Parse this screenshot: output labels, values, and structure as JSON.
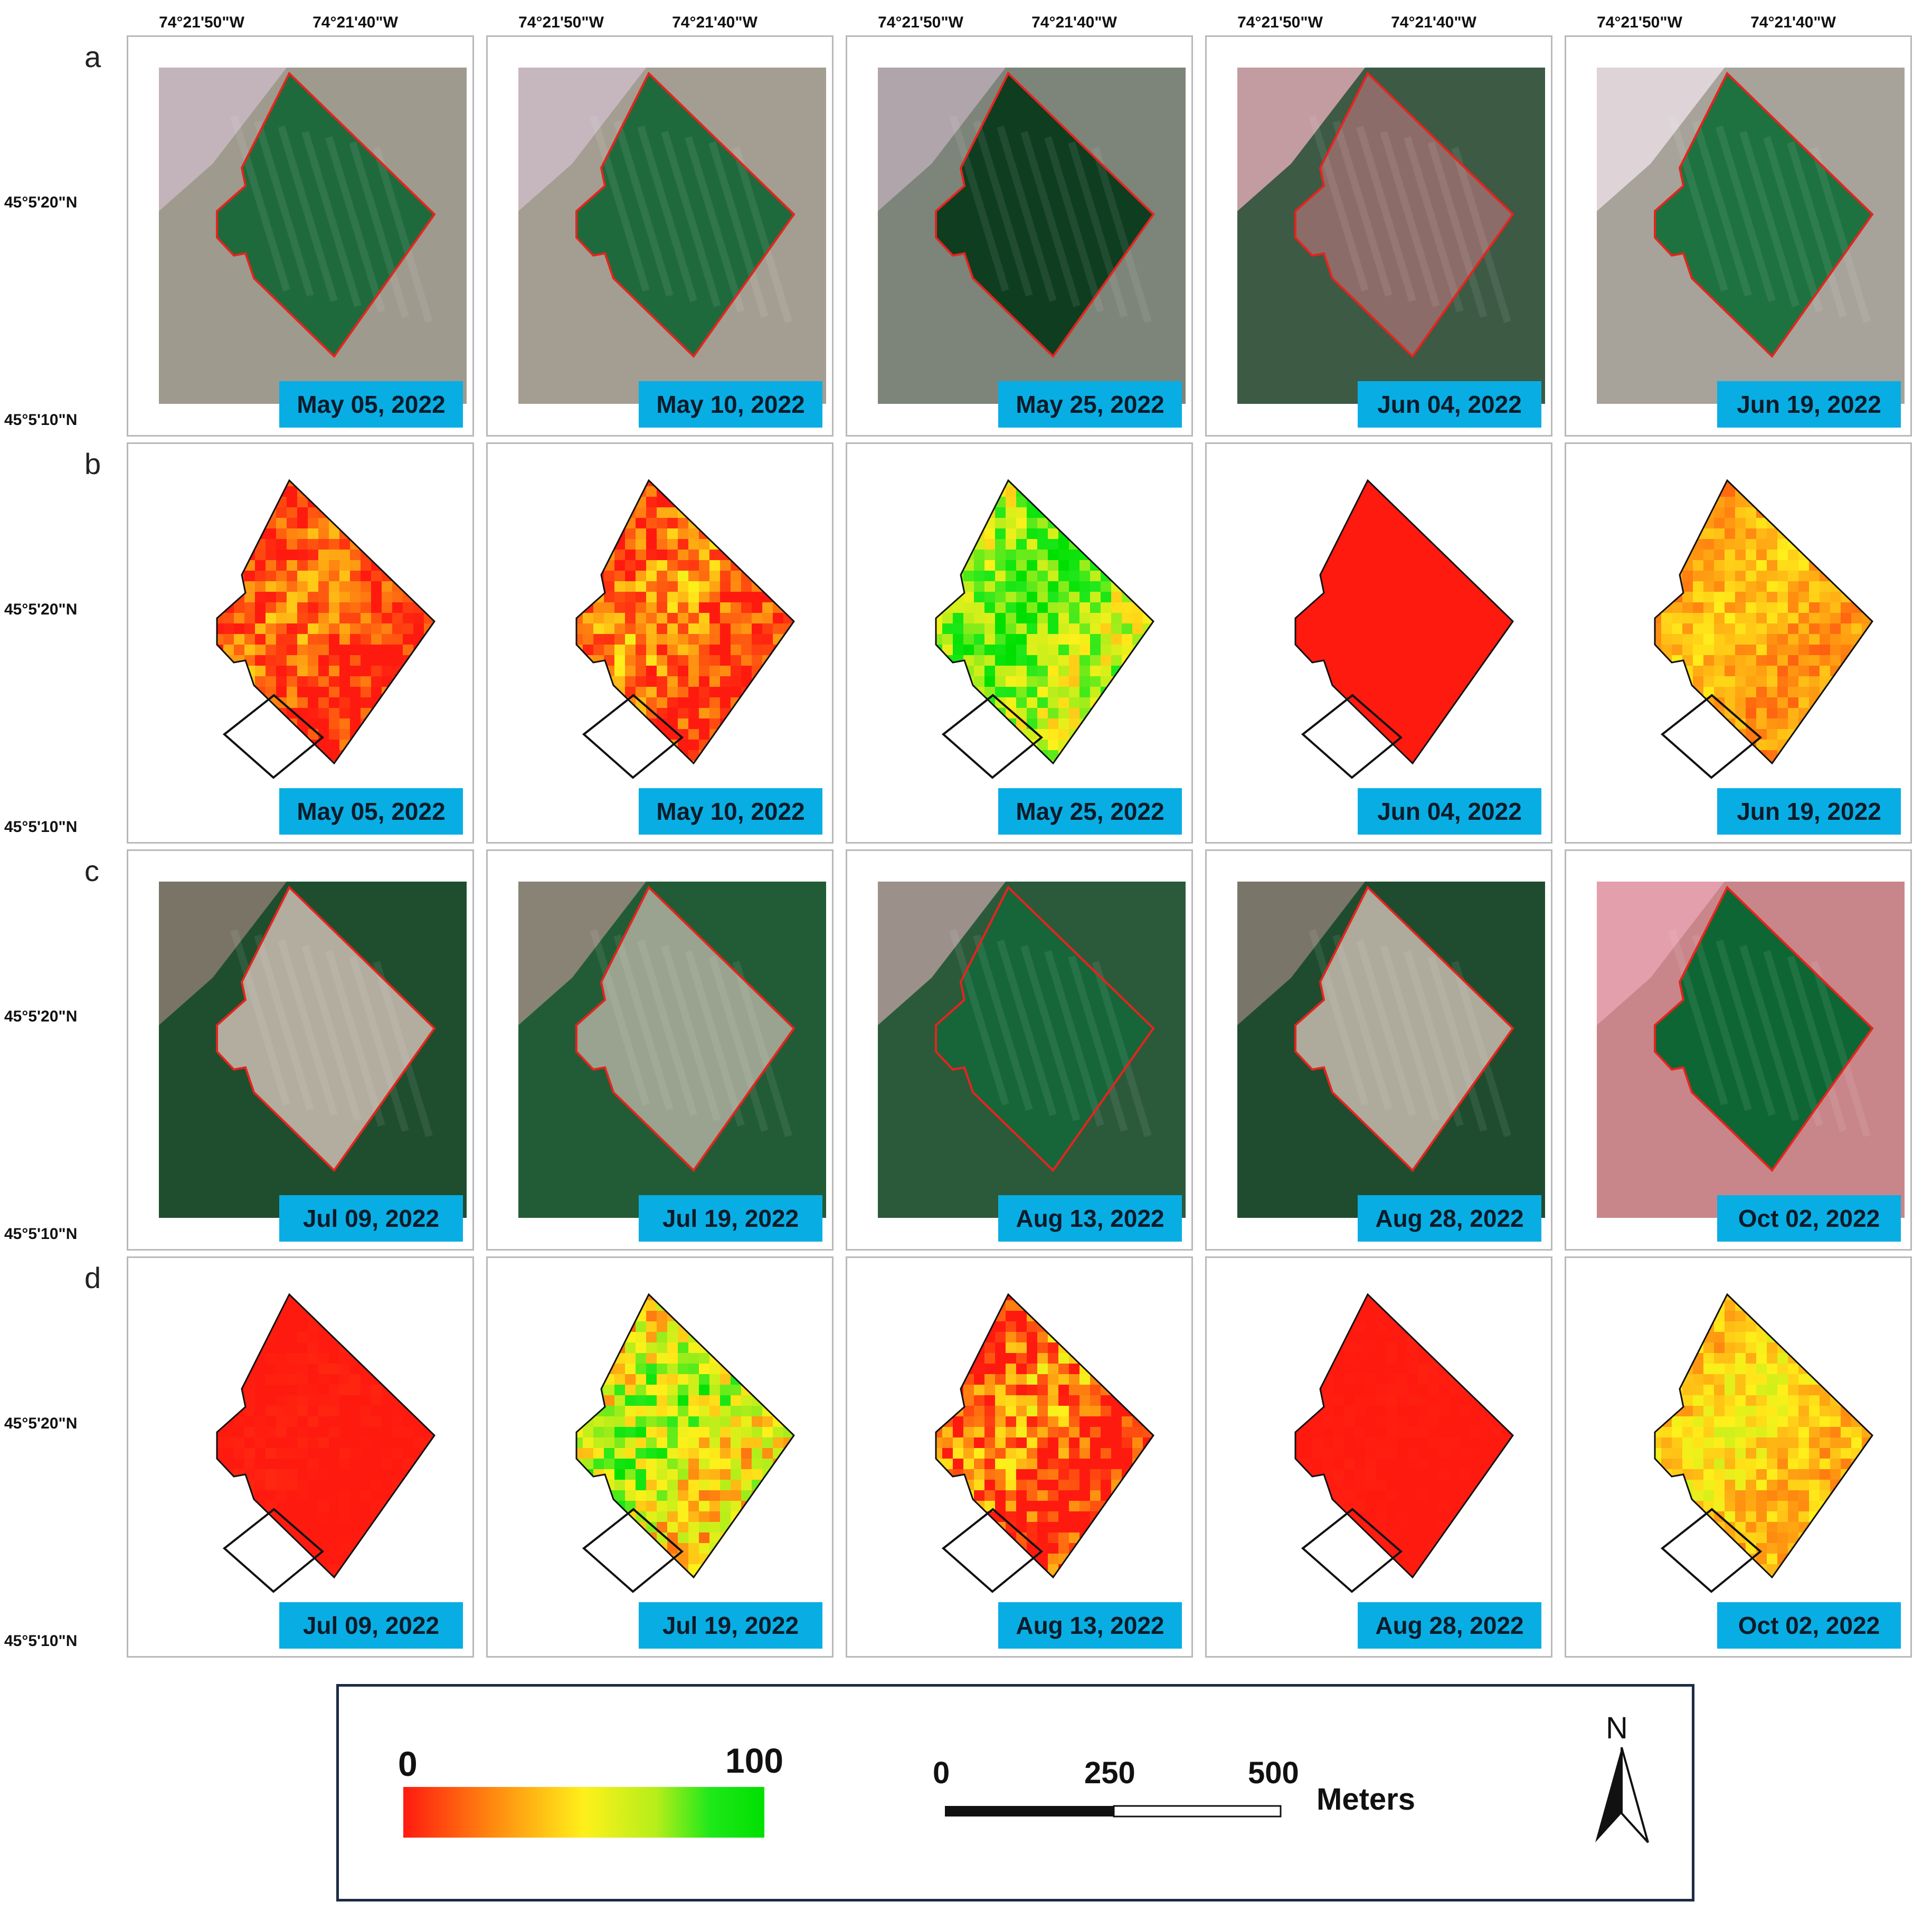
{
  "axes": {
    "lon_labels": [
      "74°21'50\"W",
      "74°21'40\"W"
    ],
    "lat_labels": [
      "45°5'20\"N",
      "45°5'10\"N"
    ]
  },
  "rows": [
    {
      "letter": "a",
      "kind": "satellite",
      "dates": [
        "May 05, 2022",
        "May 10, 2022",
        "May 25, 2022",
        "Jun 04, 2022",
        "Jun 19, 2022"
      ]
    },
    {
      "letter": "b",
      "kind": "index",
      "dates": [
        "May 05, 2022",
        "May 10, 2022",
        "May 25, 2022",
        "Jun 04, 2022",
        "Jun 19, 2022"
      ]
    },
    {
      "letter": "c",
      "kind": "satellite",
      "dates": [
        "Jul 09, 2022",
        "Jul 19, 2022",
        "Aug 13, 2022",
        "Aug 28, 2022",
        "Oct 02, 2022"
      ]
    },
    {
      "letter": "d",
      "kind": "index",
      "dates": [
        "Jul 09, 2022",
        "Jul 19, 2022",
        "Aug 13, 2022",
        "Aug 28, 2022",
        "Oct 02, 2022"
      ]
    }
  ],
  "legend": {
    "ramp_min": "0",
    "ramp_max": "100",
    "scale_ticks": [
      "0",
      "250",
      "500"
    ],
    "scale_unit": "Meters",
    "north": "N"
  },
  "colors": {
    "badge": "#08aee3",
    "field_outline": "#e8231c",
    "roi_box": "#111111",
    "ramp": [
      "#ff1a10",
      "#ff8a10",
      "#fff01a",
      "#b6ee1a",
      "#1fe81a"
    ]
  },
  "panel_styles": {
    "a": [
      {
        "field": "#1f6a3c",
        "bg": "#9f9a8e",
        "top": "#c9b8c3"
      },
      {
        "field": "#1f6a3d",
        "bg": "#a49e92",
        "top": "#ccbbc5"
      },
      {
        "field": "#0f3d20",
        "bg": "#7d8479",
        "top": "#b8aab3"
      },
      {
        "field": "#8c6c68",
        "bg": "#3c5a44",
        "top": "#d9a8b0"
      },
      {
        "field": "#1e7240",
        "bg": "#a7a39a",
        "top": "#e7dde3"
      }
    ],
    "c": [
      {
        "field": "#b2ad9f",
        "bg": "#1f4e2e",
        "top": "#8a7b70"
      },
      {
        "field": "#9aa38f",
        "bg": "#225c36",
        "top": "#9a8a80"
      },
      {
        "field": "#16663a",
        "bg": "#2b5a3a",
        "top": "#b09a9a"
      },
      {
        "field": "#aeaa9c",
        "bg": "#1f4c2e",
        "top": "#8a7c72"
      },
      {
        "field": "#0e6634",
        "bg": "#c8868a",
        "top": "#e7a3b2"
      }
    ],
    "b": [
      {
        "base": 0.12,
        "var": 0.22
      },
      {
        "base": 0.18,
        "var": 0.24
      },
      {
        "base": 0.72,
        "var": 0.22
      },
      {
        "base": 0.0,
        "var": 0.0
      },
      {
        "base": 0.33,
        "var": 0.12
      }
    ],
    "d": [
      {
        "base": 0.0,
        "var": 0.02
      },
      {
        "base": 0.58,
        "var": 0.28
      },
      {
        "base": 0.14,
        "var": 0.3
      },
      {
        "base": 0.0,
        "var": 0.01
      },
      {
        "base": 0.42,
        "var": 0.14
      }
    ]
  }
}
